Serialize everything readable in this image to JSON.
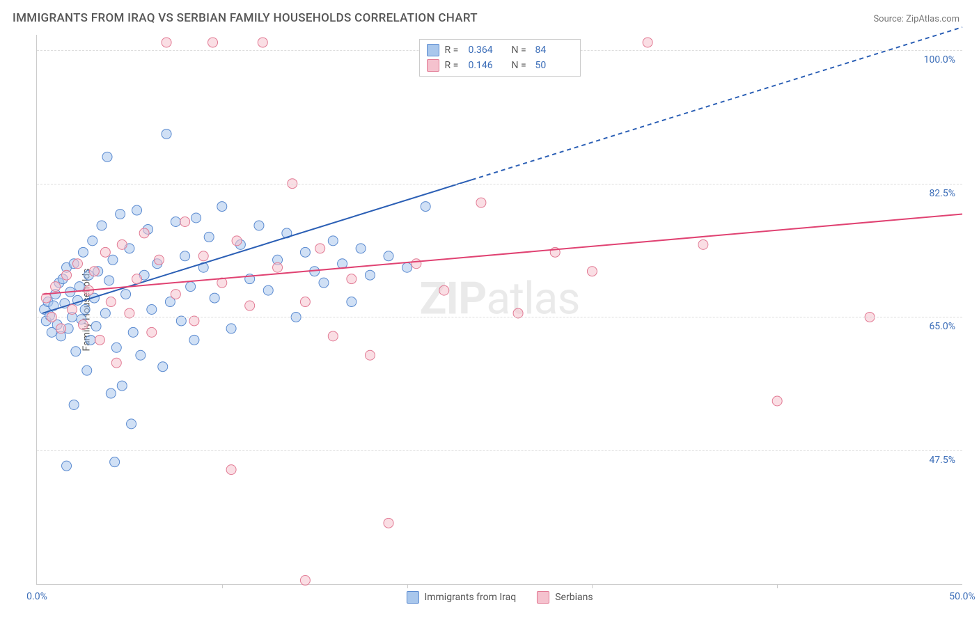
{
  "title": "IMMIGRANTS FROM IRAQ VS SERBIAN FAMILY HOUSEHOLDS CORRELATION CHART",
  "source_label": "Source:",
  "source_name": "ZipAtlas.com",
  "ylabel": "Family Households",
  "watermark_bold": "ZIP",
  "watermark_rest": "atlas",
  "chart": {
    "type": "scatter",
    "xlim": [
      0,
      50
    ],
    "ylim": [
      30,
      102
    ],
    "x_ticks": [
      0,
      10,
      20,
      30,
      40,
      50
    ],
    "x_tick_labels": [
      "0.0%",
      "",
      "",
      "",
      "",
      "50.0%"
    ],
    "y_ticks": [
      47.5,
      65.0,
      82.5,
      100.0
    ],
    "y_tick_labels": [
      "47.5%",
      "65.0%",
      "82.5%",
      "100.0%"
    ],
    "background_color": "#ffffff",
    "grid_color": "#dddddd",
    "marker_radius": 7,
    "marker_opacity": 0.55,
    "series": [
      {
        "name": "Immigrants from Iraq",
        "fill": "#a9c7ec",
        "stroke": "#5a8ad0",
        "r_value": "0.364",
        "n_value": "84",
        "trend": {
          "x1": 0.3,
          "y1": 65.5,
          "x2": 23.5,
          "y2": 83.0,
          "dash_x2": 50,
          "dash_y2": 103.0,
          "color": "#2b5fb5",
          "width": 2
        },
        "points": [
          [
            0.4,
            66.0
          ],
          [
            0.5,
            64.5
          ],
          [
            0.6,
            67.0
          ],
          [
            0.7,
            65.2
          ],
          [
            0.8,
            63.0
          ],
          [
            0.9,
            66.5
          ],
          [
            1.0,
            68.0
          ],
          [
            1.1,
            64.0
          ],
          [
            1.2,
            69.5
          ],
          [
            1.3,
            62.5
          ],
          [
            1.4,
            70.0
          ],
          [
            1.5,
            66.8
          ],
          [
            1.6,
            71.5
          ],
          [
            1.7,
            63.5
          ],
          [
            1.8,
            68.3
          ],
          [
            1.9,
            65.0
          ],
          [
            2.0,
            72.0
          ],
          [
            2.1,
            60.5
          ],
          [
            2.2,
            67.2
          ],
          [
            2.3,
            69.0
          ],
          [
            2.4,
            64.7
          ],
          [
            2.5,
            73.5
          ],
          [
            2.6,
            66.0
          ],
          [
            2.7,
            58.0
          ],
          [
            2.8,
            70.5
          ],
          [
            2.9,
            62.0
          ],
          [
            3.0,
            75.0
          ],
          [
            3.1,
            67.5
          ],
          [
            3.2,
            63.8
          ],
          [
            3.3,
            71.0
          ],
          [
            3.5,
            77.0
          ],
          [
            3.7,
            65.5
          ],
          [
            3.9,
            69.8
          ],
          [
            4.0,
            55.0
          ],
          [
            4.1,
            72.5
          ],
          [
            4.3,
            61.0
          ],
          [
            4.5,
            78.5
          ],
          [
            4.6,
            56.0
          ],
          [
            4.8,
            68.0
          ],
          [
            5.0,
            74.0
          ],
          [
            5.2,
            63.0
          ],
          [
            5.4,
            79.0
          ],
          [
            5.6,
            60.0
          ],
          [
            5.8,
            70.5
          ],
          [
            6.0,
            76.5
          ],
          [
            6.2,
            66.0
          ],
          [
            6.5,
            72.0
          ],
          [
            6.8,
            58.5
          ],
          [
            7.0,
            89.0
          ],
          [
            7.2,
            67.0
          ],
          [
            7.5,
            77.5
          ],
          [
            7.8,
            64.5
          ],
          [
            8.0,
            73.0
          ],
          [
            8.3,
            69.0
          ],
          [
            8.6,
            78.0
          ],
          [
            9.0,
            71.5
          ],
          [
            9.3,
            75.5
          ],
          [
            9.6,
            67.5
          ],
          [
            10.0,
            79.5
          ],
          [
            10.5,
            63.5
          ],
          [
            11.0,
            74.5
          ],
          [
            11.5,
            70.0
          ],
          [
            12.0,
            77.0
          ],
          [
            12.5,
            68.5
          ],
          [
            13.0,
            72.5
          ],
          [
            13.5,
            76.0
          ],
          [
            14.0,
            65.0
          ],
          [
            14.5,
            73.5
          ],
          [
            15.0,
            71.0
          ],
          [
            15.5,
            69.5
          ],
          [
            16.0,
            75.0
          ],
          [
            16.5,
            72.0
          ],
          [
            17.0,
            67.0
          ],
          [
            17.5,
            74.0
          ],
          [
            18.0,
            70.5
          ],
          [
            19.0,
            73.0
          ],
          [
            20.0,
            71.5
          ],
          [
            21.0,
            79.5
          ],
          [
            3.8,
            86.0
          ],
          [
            4.2,
            46.0
          ],
          [
            5.1,
            51.0
          ],
          [
            1.6,
            45.5
          ],
          [
            2.0,
            53.5
          ],
          [
            8.5,
            62.0
          ]
        ]
      },
      {
        "name": "Serbians",
        "fill": "#f5c2ce",
        "stroke": "#e27a94",
        "r_value": "0.146",
        "n_value": "50",
        "trend": {
          "x1": 0.3,
          "y1": 68.0,
          "x2": 50,
          "y2": 78.5,
          "color": "#e04272",
          "width": 2
        },
        "points": [
          [
            0.5,
            67.5
          ],
          [
            0.8,
            65.0
          ],
          [
            1.0,
            69.0
          ],
          [
            1.3,
            63.5
          ],
          [
            1.6,
            70.5
          ],
          [
            1.9,
            66.0
          ],
          [
            2.2,
            72.0
          ],
          [
            2.5,
            64.0
          ],
          [
            2.8,
            68.5
          ],
          [
            3.1,
            71.0
          ],
          [
            3.4,
            62.0
          ],
          [
            3.7,
            73.5
          ],
          [
            4.0,
            67.0
          ],
          [
            4.3,
            59.0
          ],
          [
            4.6,
            74.5
          ],
          [
            5.0,
            65.5
          ],
          [
            5.4,
            70.0
          ],
          [
            5.8,
            76.0
          ],
          [
            6.2,
            63.0
          ],
          [
            6.6,
            72.5
          ],
          [
            7.0,
            101.0
          ],
          [
            7.5,
            68.0
          ],
          [
            8.0,
            77.5
          ],
          [
            8.5,
            64.5
          ],
          [
            9.0,
            73.0
          ],
          [
            9.5,
            101.0
          ],
          [
            10.0,
            69.5
          ],
          [
            10.8,
            75.0
          ],
          [
            11.5,
            66.5
          ],
          [
            12.2,
            101.0
          ],
          [
            13.0,
            71.5
          ],
          [
            13.8,
            82.5
          ],
          [
            14.5,
            67.0
          ],
          [
            15.3,
            74.0
          ],
          [
            16.0,
            62.5
          ],
          [
            17.0,
            70.0
          ],
          [
            18.0,
            60.0
          ],
          [
            19.0,
            38.0
          ],
          [
            20.5,
            72.0
          ],
          [
            22.0,
            68.5
          ],
          [
            24.0,
            80.0
          ],
          [
            26.0,
            65.5
          ],
          [
            28.0,
            73.5
          ],
          [
            30.0,
            71.0
          ],
          [
            33.0,
            101.0
          ],
          [
            36.0,
            74.5
          ],
          [
            40.0,
            54.0
          ],
          [
            45.0,
            65.0
          ],
          [
            14.5,
            30.5
          ],
          [
            10.5,
            45.0
          ]
        ]
      }
    ]
  },
  "legend": {
    "r_label": "R =",
    "n_label": "N ="
  }
}
